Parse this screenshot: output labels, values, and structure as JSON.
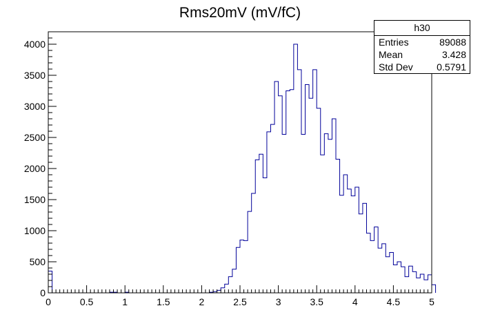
{
  "chart_data": {
    "type": "histogram",
    "title": "Rms20mV (mV/fC)",
    "xlabel": "",
    "ylabel": "",
    "xlim": [
      0,
      5
    ],
    "ylim": [
      0,
      4200
    ],
    "bin_width": 0.05,
    "x_ticks": [
      0,
      0.5,
      1,
      1.5,
      2,
      2.5,
      3,
      3.5,
      4,
      4.5,
      5
    ],
    "x_tick_labels": [
      "0",
      "0.5",
      "1",
      "1.5",
      "2",
      "2.5",
      "3",
      "3.5",
      "4",
      "4.5",
      "5"
    ],
    "y_ticks": [
      0,
      500,
      1000,
      1500,
      2000,
      2500,
      3000,
      3500,
      4000
    ],
    "y_tick_labels": [
      "0",
      "500",
      "1000",
      "1500",
      "2000",
      "2500",
      "3000",
      "3500",
      "4000"
    ],
    "counts": [
      350,
      0,
      0,
      0,
      0,
      0,
      0,
      0,
      0,
      0,
      0,
      0,
      0,
      0,
      0,
      0,
      10,
      10,
      0,
      0,
      10,
      0,
      0,
      0,
      0,
      0,
      0,
      0,
      0,
      0,
      0,
      0,
      0,
      0,
      0,
      0,
      0,
      0,
      0,
      0,
      0,
      0,
      10,
      20,
      40,
      80,
      140,
      260,
      380,
      730,
      850,
      840,
      1310,
      1600,
      2140,
      2230,
      1850,
      2590,
      2710,
      3400,
      3170,
      2550,
      3250,
      3270,
      4000,
      3590,
      2550,
      3350,
      3130,
      3590,
      2970,
      2220,
      2560,
      2470,
      2800,
      2150,
      1570,
      1900,
      1670,
      1560,
      1700,
      1270,
      1440,
      960,
      840,
      1060,
      720,
      790,
      580,
      650,
      450,
      500,
      420,
      260,
      430,
      340,
      240,
      300,
      210,
      290,
      130
    ],
    "line_color": "#000099",
    "grid": false,
    "legend_placement": "top-right",
    "stats_box": {
      "name": "h30",
      "rows": [
        {
          "label": "Entries",
          "value": "89088"
        },
        {
          "label": "Mean",
          "value": "3.428"
        },
        {
          "label": "Std Dev",
          "value": "0.5791"
        }
      ]
    }
  }
}
